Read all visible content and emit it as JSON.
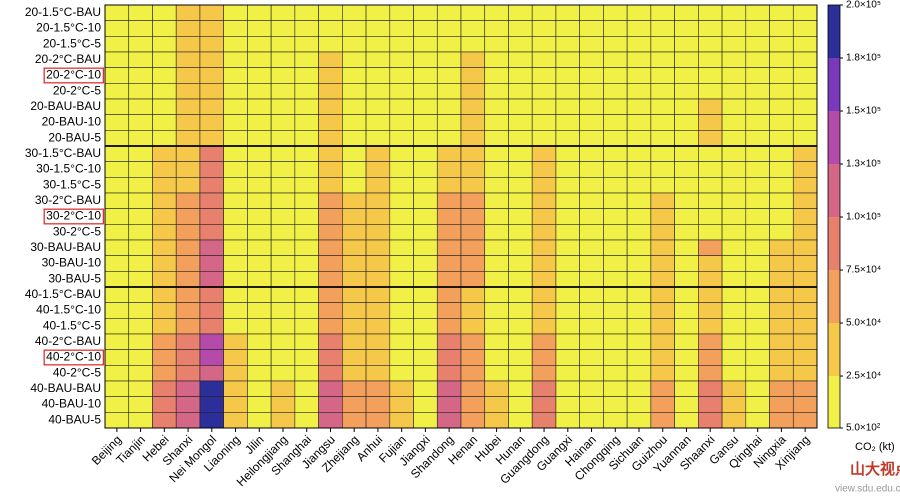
{
  "chart_data": {
    "type": "heatmap",
    "rows": [
      "20-1.5°C-BAU",
      "20-1.5°C-10",
      "20-1.5°C-5",
      "20-2°C-BAU",
      "20-2°C-10",
      "20-2°C-5",
      "20-BAU-BAU",
      "20-BAU-10",
      "20-BAU-5",
      "30-1.5°C-BAU",
      "30-1.5°C-10",
      "30-1.5°C-5",
      "30-2°C-BAU",
      "30-2°C-10",
      "30-2°C-5",
      "30-BAU-BAU",
      "30-BAU-10",
      "30-BAU-5",
      "40-1.5°C-BAU",
      "40-1.5°C-10",
      "40-1.5°C-5",
      "40-2°C-BAU",
      "40-2°C-10",
      "40-2°C-5",
      "40-BAU-BAU",
      "40-BAU-10",
      "40-BAU-5"
    ],
    "columns": [
      "Beijing",
      "Tianjin",
      "Hebei",
      "Shanxi",
      "Nei Mongol",
      "Liaoning",
      "Jilin",
      "Heilongjiang",
      "Shanghai",
      "Jiangsu",
      "Zhejiang",
      "Anhui",
      "Fujian",
      "Jiangxi",
      "Shandong",
      "Henan",
      "Hubei",
      "Hunan",
      "Guangdong",
      "Guangxi",
      "Hainan",
      "Chongqing",
      "Sichuan",
      "Guizhou",
      "Yuannan",
      "Shaanxi",
      "Gansu",
      "Qinghai",
      "Ningxia",
      "Xinjiang"
    ],
    "values": [
      [
        10000,
        10000,
        10000,
        37500,
        37500,
        10000,
        10000,
        10000,
        10000,
        10000,
        10000,
        10000,
        10000,
        10000,
        10000,
        10000,
        10000,
        10000,
        10000,
        10000,
        10000,
        10000,
        10000,
        10000,
        10000,
        10000,
        10000,
        10000,
        10000,
        10000
      ],
      [
        10000,
        10000,
        10000,
        37500,
        37500,
        10000,
        10000,
        10000,
        10000,
        10000,
        10000,
        10000,
        10000,
        10000,
        10000,
        10000,
        10000,
        10000,
        10000,
        10000,
        10000,
        10000,
        10000,
        10000,
        10000,
        10000,
        10000,
        10000,
        10000,
        10000
      ],
      [
        10000,
        10000,
        10000,
        37500,
        37500,
        10000,
        10000,
        10000,
        10000,
        10000,
        10000,
        10000,
        10000,
        10000,
        10000,
        10000,
        10000,
        10000,
        10000,
        10000,
        10000,
        10000,
        10000,
        10000,
        10000,
        10000,
        10000,
        10000,
        10000,
        10000
      ],
      [
        10000,
        10000,
        10000,
        37500,
        37500,
        10000,
        10000,
        10000,
        10000,
        37500,
        10000,
        10000,
        10000,
        10000,
        10000,
        37500,
        10000,
        10000,
        10000,
        10000,
        10000,
        10000,
        10000,
        10000,
        10000,
        10000,
        10000,
        10000,
        10000,
        10000
      ],
      [
        10000,
        10000,
        10000,
        37500,
        37500,
        10000,
        10000,
        10000,
        10000,
        37500,
        10000,
        10000,
        10000,
        10000,
        10000,
        37500,
        10000,
        10000,
        10000,
        10000,
        10000,
        10000,
        10000,
        10000,
        10000,
        10000,
        10000,
        10000,
        10000,
        10000
      ],
      [
        10000,
        10000,
        10000,
        37500,
        37500,
        10000,
        10000,
        10000,
        10000,
        37500,
        10000,
        10000,
        10000,
        10000,
        10000,
        37500,
        10000,
        10000,
        10000,
        10000,
        10000,
        10000,
        10000,
        10000,
        10000,
        10000,
        10000,
        10000,
        10000,
        10000
      ],
      [
        10000,
        10000,
        10000,
        37500,
        37500,
        10000,
        10000,
        10000,
        10000,
        37500,
        10000,
        10000,
        10000,
        10000,
        10000,
        37500,
        10000,
        10000,
        10000,
        10000,
        10000,
        10000,
        10000,
        10000,
        10000,
        37500,
        10000,
        10000,
        10000,
        10000
      ],
      [
        10000,
        10000,
        10000,
        37500,
        37500,
        10000,
        10000,
        10000,
        10000,
        37500,
        10000,
        10000,
        10000,
        10000,
        10000,
        37500,
        10000,
        10000,
        10000,
        10000,
        10000,
        10000,
        10000,
        10000,
        10000,
        37500,
        10000,
        10000,
        10000,
        10000
      ],
      [
        10000,
        10000,
        10000,
        37500,
        37500,
        10000,
        10000,
        10000,
        10000,
        37500,
        10000,
        10000,
        10000,
        10000,
        10000,
        37500,
        10000,
        10000,
        10000,
        10000,
        10000,
        10000,
        10000,
        10000,
        10000,
        37500,
        10000,
        10000,
        10000,
        10000
      ],
      [
        10000,
        10000,
        37500,
        37500,
        87500,
        10000,
        10000,
        10000,
        10000,
        37500,
        10000,
        37500,
        10000,
        10000,
        37500,
        37500,
        10000,
        10000,
        37500,
        10000,
        10000,
        10000,
        10000,
        10000,
        10000,
        10000,
        10000,
        10000,
        10000,
        37500
      ],
      [
        10000,
        10000,
        37500,
        37500,
        87500,
        10000,
        10000,
        10000,
        10000,
        37500,
        10000,
        37500,
        10000,
        10000,
        37500,
        37500,
        10000,
        10000,
        37500,
        10000,
        10000,
        10000,
        10000,
        10000,
        10000,
        10000,
        10000,
        10000,
        10000,
        37500
      ],
      [
        10000,
        10000,
        37500,
        37500,
        87500,
        10000,
        10000,
        10000,
        10000,
        37500,
        10000,
        37500,
        10000,
        10000,
        37500,
        37500,
        10000,
        10000,
        37500,
        10000,
        10000,
        10000,
        10000,
        10000,
        10000,
        10000,
        10000,
        10000,
        10000,
        37500
      ],
      [
        10000,
        10000,
        37500,
        62500,
        87500,
        10000,
        10000,
        10000,
        10000,
        62500,
        37500,
        37500,
        10000,
        10000,
        62500,
        62500,
        10000,
        10000,
        37500,
        10000,
        10000,
        10000,
        10000,
        37500,
        10000,
        10000,
        10000,
        10000,
        10000,
        37500
      ],
      [
        10000,
        10000,
        37500,
        62500,
        87500,
        10000,
        10000,
        10000,
        10000,
        62500,
        37500,
        37500,
        10000,
        10000,
        62500,
        62500,
        10000,
        10000,
        37500,
        10000,
        10000,
        10000,
        10000,
        37500,
        10000,
        10000,
        10000,
        10000,
        10000,
        37500
      ],
      [
        10000,
        10000,
        37500,
        62500,
        87500,
        10000,
        10000,
        10000,
        10000,
        62500,
        37500,
        37500,
        10000,
        10000,
        62500,
        62500,
        10000,
        10000,
        37500,
        10000,
        10000,
        10000,
        10000,
        37500,
        10000,
        10000,
        10000,
        10000,
        10000,
        37500
      ],
      [
        10000,
        10000,
        37500,
        62500,
        112500,
        10000,
        10000,
        10000,
        10000,
        62500,
        37500,
        37500,
        10000,
        10000,
        62500,
        62500,
        10000,
        10000,
        37500,
        10000,
        10000,
        10000,
        10000,
        37500,
        10000,
        62500,
        10000,
        10000,
        37500,
        37500
      ],
      [
        10000,
        10000,
        37500,
        62500,
        112500,
        10000,
        10000,
        10000,
        10000,
        62500,
        37500,
        37500,
        10000,
        10000,
        62500,
        62500,
        10000,
        10000,
        37500,
        10000,
        10000,
        10000,
        10000,
        37500,
        10000,
        37500,
        10000,
        10000,
        37500,
        37500
      ],
      [
        10000,
        10000,
        37500,
        62500,
        112500,
        10000,
        10000,
        10000,
        10000,
        62500,
        37500,
        37500,
        10000,
        10000,
        62500,
        62500,
        10000,
        10000,
        37500,
        10000,
        10000,
        10000,
        10000,
        37500,
        10000,
        37500,
        10000,
        10000,
        37500,
        37500
      ],
      [
        10000,
        10000,
        37500,
        62500,
        87500,
        10000,
        10000,
        10000,
        10000,
        62500,
        37500,
        37500,
        10000,
        10000,
        62500,
        37500,
        10000,
        10000,
        37500,
        10000,
        10000,
        10000,
        10000,
        37500,
        10000,
        37500,
        10000,
        10000,
        37500,
        37500
      ],
      [
        10000,
        10000,
        37500,
        62500,
        87500,
        10000,
        10000,
        10000,
        10000,
        62500,
        37500,
        37500,
        10000,
        10000,
        62500,
        37500,
        10000,
        10000,
        37500,
        10000,
        10000,
        10000,
        10000,
        37500,
        10000,
        37500,
        10000,
        10000,
        37500,
        37500
      ],
      [
        10000,
        10000,
        37500,
        62500,
        87500,
        10000,
        10000,
        10000,
        10000,
        62500,
        37500,
        37500,
        10000,
        10000,
        62500,
        37500,
        10000,
        10000,
        37500,
        10000,
        10000,
        10000,
        10000,
        37500,
        10000,
        37500,
        10000,
        10000,
        37500,
        37500
      ],
      [
        10000,
        10000,
        62500,
        87500,
        137500,
        37500,
        10000,
        10000,
        10000,
        87500,
        37500,
        37500,
        10000,
        10000,
        87500,
        62500,
        10000,
        10000,
        62500,
        10000,
        10000,
        10000,
        10000,
        37500,
        10000,
        62500,
        10000,
        10000,
        37500,
        37500
      ],
      [
        10000,
        10000,
        62500,
        87500,
        137500,
        37500,
        10000,
        10000,
        10000,
        87500,
        37500,
        37500,
        10000,
        10000,
        87500,
        62500,
        10000,
        10000,
        62500,
        10000,
        10000,
        10000,
        10000,
        37500,
        10000,
        62500,
        10000,
        10000,
        37500,
        37500
      ],
      [
        10000,
        10000,
        62500,
        87500,
        112500,
        37500,
        10000,
        10000,
        10000,
        87500,
        37500,
        37500,
        10000,
        10000,
        87500,
        62500,
        10000,
        10000,
        62500,
        10000,
        10000,
        10000,
        10000,
        37500,
        10000,
        62500,
        10000,
        10000,
        37500,
        37500
      ],
      [
        10000,
        10000,
        87500,
        112500,
        187500,
        37500,
        10000,
        37500,
        10000,
        112500,
        62500,
        62500,
        37500,
        10000,
        112500,
        62500,
        37500,
        10000,
        87500,
        10000,
        10000,
        10000,
        10000,
        62500,
        10000,
        87500,
        37500,
        10000,
        62500,
        62500
      ],
      [
        10000,
        10000,
        87500,
        112500,
        187500,
        37500,
        10000,
        37500,
        10000,
        112500,
        62500,
        62500,
        37500,
        10000,
        112500,
        62500,
        37500,
        10000,
        87500,
        10000,
        10000,
        10000,
        10000,
        62500,
        10000,
        87500,
        37500,
        10000,
        62500,
        62500
      ],
      [
        10000,
        10000,
        87500,
        112500,
        187500,
        37500,
        10000,
        37500,
        10000,
        112500,
        62500,
        62500,
        37500,
        10000,
        112500,
        62500,
        37500,
        10000,
        87500,
        10000,
        10000,
        10000,
        10000,
        62500,
        10000,
        87500,
        37500,
        10000,
        62500,
        62500
      ]
    ],
    "zlim": [
      500,
      200000
    ],
    "zticks": [
      {
        "value": 500,
        "label": "5.0×10²"
      },
      {
        "value": 25000,
        "label": "2.5×10⁴"
      },
      {
        "value": 50000,
        "label": "5.0×10⁴"
      },
      {
        "value": 75000,
        "label": "7.5×10⁴"
      },
      {
        "value": 100000,
        "label": "1.0×10⁵"
      },
      {
        "value": 125000,
        "label": "1.3×10⁵"
      },
      {
        "value": 150000,
        "label": "1.5×10⁵"
      },
      {
        "value": 175000,
        "label": "1.8×10⁵"
      },
      {
        "value": 200000,
        "label": "2.0×10⁵"
      }
    ],
    "colors": [
      "#f0f046",
      "#f6c84a",
      "#f2a05c",
      "#e8806e",
      "#d46688",
      "#b44aaa",
      "#7a38bc",
      "#2c2f9a"
    ],
    "colorbar_title": "CO₂ (kt)",
    "highlight_rows": [
      4,
      13,
      22
    ],
    "highlight_color": "#e02020",
    "watermark": {
      "text": "山大视点",
      "url": "view.sdu.edu.cn"
    }
  }
}
